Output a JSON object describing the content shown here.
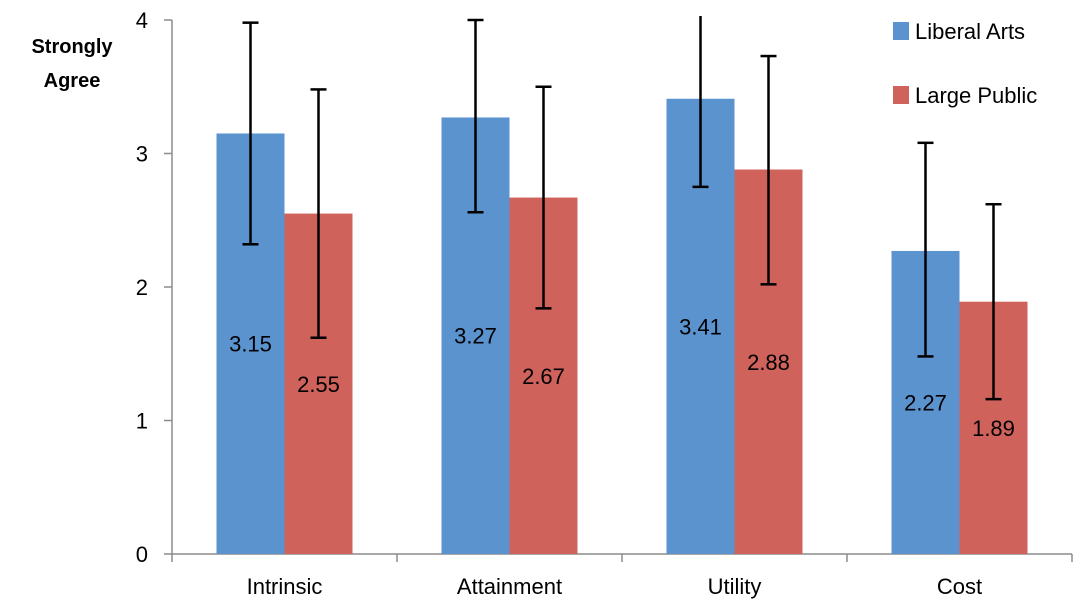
{
  "chart_data": {
    "type": "bar",
    "title": "",
    "xlabel": "",
    "ylabel_lines": [
      "Strongly",
      "Agree"
    ],
    "ylim": [
      0,
      4
    ],
    "yticks": [
      0,
      1,
      2,
      3,
      4
    ],
    "categories": [
      "Intrinsic",
      "Attainment",
      "Utility",
      "Cost"
    ],
    "series": [
      {
        "name": "Liberal Arts",
        "color": "#5b93cf",
        "values": [
          3.15,
          3.27,
          3.41,
          2.27
        ],
        "labels": [
          "3.15",
          "3.27",
          "3.41",
          "2.27"
        ],
        "error_low": [
          2.32,
          2.56,
          2.75,
          1.48
        ],
        "error_high": [
          3.98,
          4.0,
          4.07,
          3.08
        ]
      },
      {
        "name": "Large Public",
        "color": "#d0625c",
        "values": [
          2.55,
          2.67,
          2.88,
          1.89
        ],
        "labels": [
          "2.55",
          "2.67",
          "2.88",
          "1.89"
        ],
        "error_low": [
          1.62,
          1.84,
          2.02,
          1.16
        ],
        "error_high": [
          3.48,
          3.5,
          3.73,
          2.62
        ]
      }
    ],
    "legend": {
      "position": "top-right"
    },
    "grid": false
  }
}
